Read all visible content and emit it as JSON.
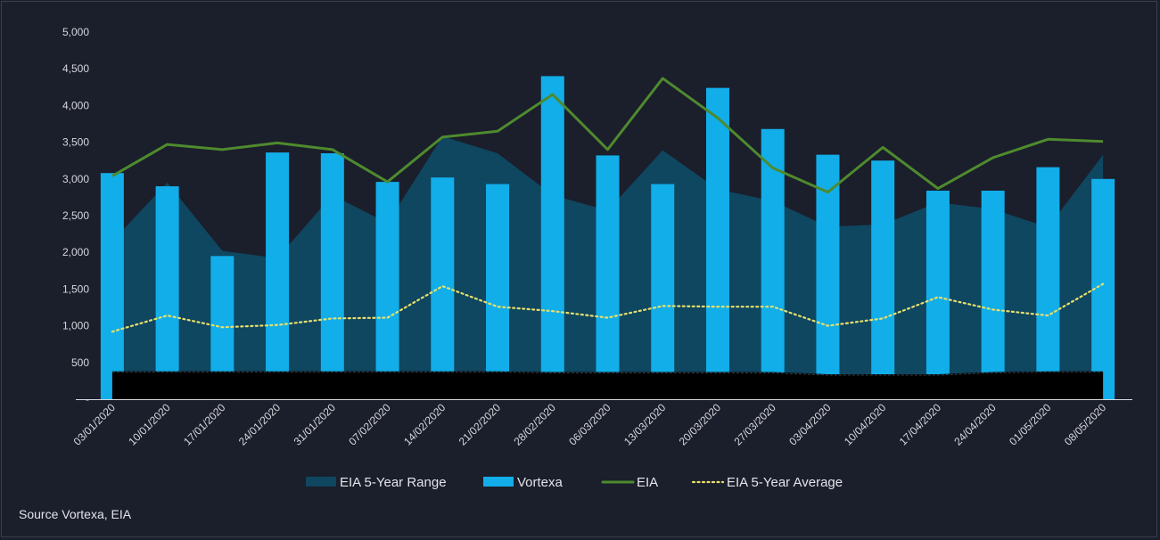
{
  "source_note": "Source Vortexa, EIA",
  "colors": {
    "background": "#1b1e2b",
    "range_fill": "#0f4660",
    "vortexa_bar": "#12aee9",
    "eia_line": "#4e8a2e",
    "avg_line": "#e8e06a",
    "baseline": "#000000"
  },
  "chart_data": {
    "type": "bar",
    "categories": [
      "03/01/2020",
      "10/01/2020",
      "17/01/2020",
      "24/01/2020",
      "31/01/2020",
      "07/02/2020",
      "14/02/2020",
      "21/02/2020",
      "28/02/2020",
      "06/03/2020",
      "13/03/2020",
      "20/03/2020",
      "27/03/2020",
      "03/04/2020",
      "10/04/2020",
      "17/04/2020",
      "24/04/2020",
      "01/05/2020",
      "08/05/2020"
    ],
    "y_ticks": [
      "5,000",
      "4,500",
      "4,000",
      "3,500",
      "3,000",
      "2,500",
      "2,000",
      "1,500",
      "1,000",
      "500",
      "-"
    ],
    "ylim": [
      0,
      5000
    ],
    "grid": false,
    "legend_position": "bottom",
    "series": [
      {
        "name": "EIA 5-Year Range",
        "kind": "range",
        "upper": [
          2150,
          2950,
          2020,
          1920,
          2780,
          2400,
          3580,
          3350,
          2780,
          2570,
          3390,
          2860,
          2700,
          2350,
          2380,
          2680,
          2590,
          2340,
          3330
        ],
        "lower": [
          380,
          380,
          380,
          380,
          380,
          380,
          380,
          380,
          370,
          370,
          370,
          370,
          370,
          340,
          340,
          340,
          370,
          380,
          380
        ]
      },
      {
        "name": "Vortexa",
        "kind": "bar",
        "values": [
          3080,
          2900,
          1950,
          3360,
          3350,
          2960,
          3020,
          2930,
          4400,
          3320,
          2930,
          4240,
          3680,
          3330,
          3250,
          2840,
          2840,
          3160,
          3000
        ]
      },
      {
        "name": "EIA",
        "kind": "line",
        "values": [
          3040,
          3470,
          3400,
          3490,
          3400,
          2960,
          3570,
          3650,
          4150,
          3400,
          4370,
          3830,
          3150,
          2820,
          3430,
          2870,
          3290,
          3540,
          3510
        ]
      },
      {
        "name": "EIA 5-Year Average",
        "kind": "dotted",
        "values": [
          920,
          1140,
          980,
          1010,
          1100,
          1110,
          1540,
          1260,
          1200,
          1110,
          1270,
          1260,
          1260,
          1000,
          1100,
          1390,
          1220,
          1140,
          1570
        ]
      }
    ]
  }
}
